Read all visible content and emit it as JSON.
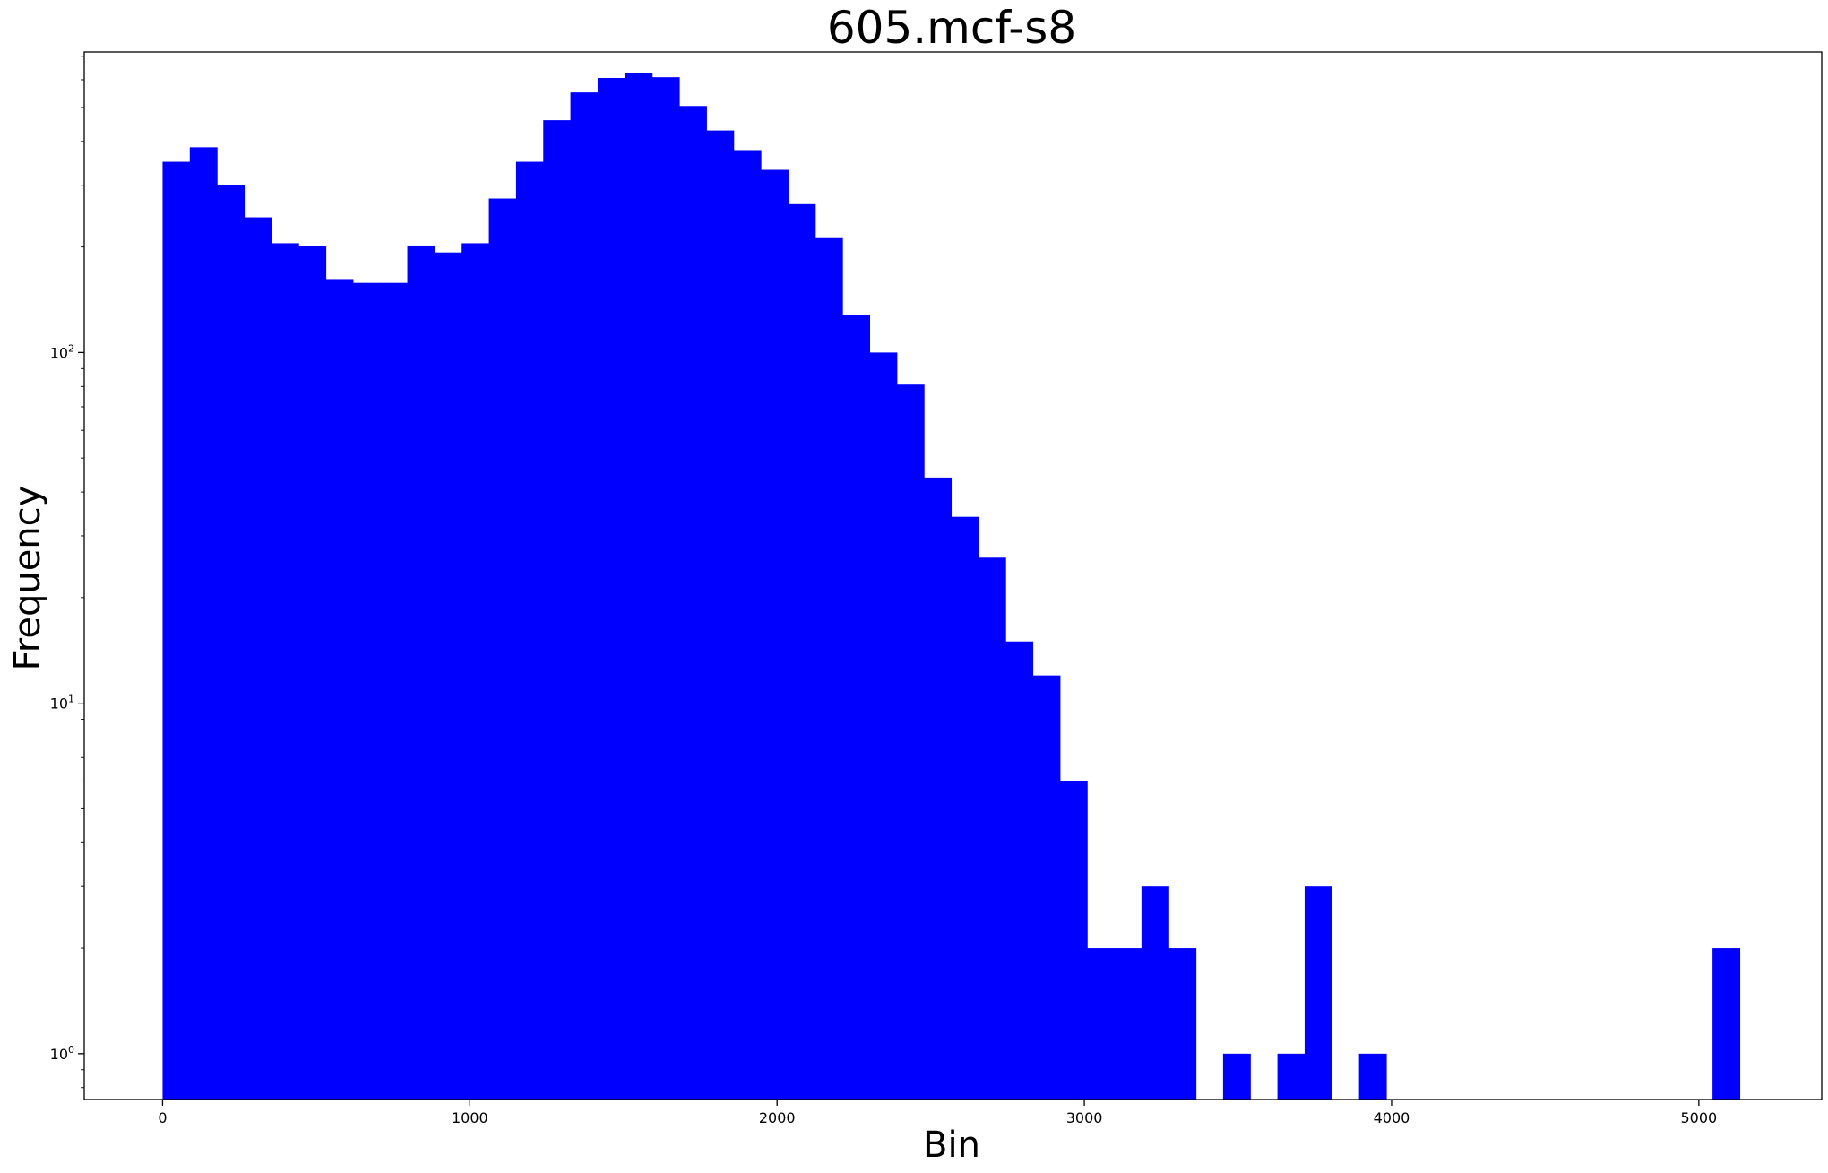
{
  "chart_data": {
    "type": "bar",
    "title": "605.mcf-s8",
    "xlabel": "Bin",
    "ylabel": "Frequency",
    "yscale": "log",
    "color": "#0000ff",
    "xlim": [
      -255,
      5400
    ],
    "ylim": [
      0.74,
      720
    ],
    "bin_width": 88.5,
    "bin_start": 0,
    "values": [
      350,
      385,
      300,
      243,
      205,
      201,
      162,
      158,
      158,
      202,
      193,
      205,
      275,
      350,
      460,
      552,
      607,
      628,
      610,
      505,
      430,
      378,
      332,
      265,
      212,
      128,
      100,
      81,
      44,
      34,
      26,
      15,
      12,
      6,
      2,
      2,
      3,
      2,
      0,
      1,
      0,
      1,
      3,
      0,
      1,
      0,
      0,
      0,
      0,
      0,
      0,
      0,
      0,
      0,
      0,
      0,
      0,
      2
    ],
    "xticks": [
      {
        "value": 0,
        "label": "0"
      },
      {
        "value": 1000,
        "label": "1000"
      },
      {
        "value": 2000,
        "label": "2000"
      },
      {
        "value": 3000,
        "label": "3000"
      },
      {
        "value": 4000,
        "label": "4000"
      },
      {
        "value": 5000,
        "label": "5000"
      }
    ],
    "yticks": [
      {
        "value": 1,
        "base": "10",
        "exp": "0"
      },
      {
        "value": 10,
        "base": "10",
        "exp": "1"
      },
      {
        "value": 100,
        "base": "10",
        "exp": "2"
      }
    ],
    "grid": false,
    "legend": "none"
  }
}
